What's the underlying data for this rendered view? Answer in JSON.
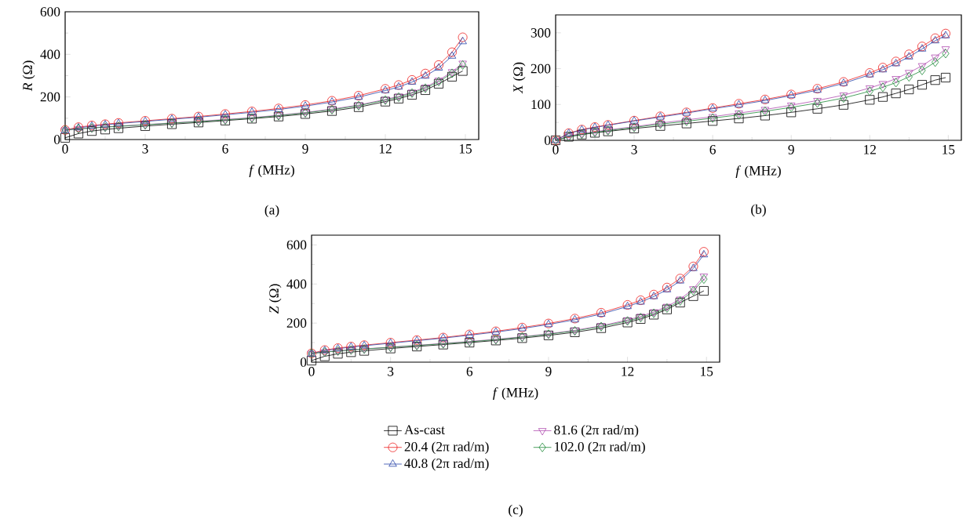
{
  "chart_data": [
    {
      "type": "line",
      "xlabel": "*f* (MHz)",
      "ylabel": "*R* (Ω)",
      "annotations": [
        "(a)"
      ],
      "xlim": [
        0,
        15.5
      ],
      "ylim": [
        0,
        600
      ],
      "xticks": [
        0,
        3,
        6,
        9,
        12,
        15
      ],
      "yticks": [
        0,
        200,
        400,
        600
      ],
      "grid": false,
      "legend": false,
      "x": [
        0,
        0.5,
        1,
        1.5,
        2,
        3,
        4,
        5,
        6,
        7,
        8,
        9,
        10,
        11,
        12,
        12.5,
        13,
        13.5,
        14,
        14.5,
        14.9
      ],
      "series": [
        {
          "color": "#000000",
          "marker": "square",
          "values": [
            8,
            28,
            40,
            47,
            53,
            63,
            72,
            80,
            89,
            98,
            108,
            120,
            134,
            152,
            178,
            192,
            210,
            232,
            262,
            295,
            322
          ]
        },
        {
          "color": "#ee2222",
          "marker": "circle",
          "values": [
            45,
            58,
            66,
            72,
            78,
            88,
            98,
            108,
            120,
            132,
            146,
            162,
            182,
            206,
            238,
            256,
            280,
            310,
            350,
            410,
            480
          ]
        },
        {
          "color": "#2a45a8",
          "marker": "triangle",
          "values": [
            42,
            55,
            63,
            69,
            75,
            85,
            95,
            105,
            116,
            128,
            141,
            157,
            176,
            199,
            230,
            247,
            270,
            298,
            336,
            392,
            460
          ]
        },
        {
          "color": "#b04cb0",
          "marker": "triangle-down",
          "values": [
            45,
            50,
            55,
            59,
            63,
            70,
            78,
            86,
            94,
            103,
            114,
            127,
            143,
            162,
            188,
            203,
            222,
            246,
            278,
            318,
            358
          ]
        },
        {
          "color": "#1f8a3a",
          "marker": "diamond",
          "values": [
            45,
            50,
            54,
            58,
            62,
            69,
            77,
            84,
            92,
            101,
            112,
            125,
            140,
            159,
            185,
            199,
            218,
            241,
            272,
            311,
            350
          ]
        }
      ]
    },
    {
      "type": "line",
      "xlabel": "*f* (MHz)",
      "ylabel": "*X* (Ω)",
      "annotations": [
        "(b)"
      ],
      "xlim": [
        0,
        15.5
      ],
      "ylim": [
        0,
        350
      ],
      "xticks": [
        0,
        3,
        6,
        9,
        12,
        15
      ],
      "yticks": [
        0,
        100,
        200,
        300
      ],
      "grid": false,
      "legend": false,
      "x": [
        0,
        0.5,
        1,
        1.5,
        2,
        3,
        4,
        5,
        6,
        7,
        8,
        9,
        10,
        11,
        12,
        12.5,
        13,
        13.5,
        14,
        14.5,
        14.9
      ],
      "series": [
        {
          "color": "#000000",
          "marker": "square",
          "values": [
            0,
            10,
            16,
            21,
            25,
            33,
            40,
            47,
            54,
            61,
            69,
            78,
            88,
            99,
            113,
            121,
            131,
            142,
            155,
            168,
            175
          ]
        },
        {
          "color": "#ee2222",
          "marker": "circle",
          "values": [
            0,
            20,
            30,
            37,
            43,
            55,
            67,
            78,
            90,
            102,
            114,
            128,
            144,
            163,
            188,
            203,
            220,
            240,
            262,
            285,
            298
          ]
        },
        {
          "color": "#2a45a8",
          "marker": "triangle",
          "values": [
            0,
            19,
            29,
            36,
            42,
            54,
            65,
            76,
            88,
            99,
            111,
            125,
            140,
            159,
            183,
            197,
            214,
            233,
            255,
            278,
            292
          ]
        },
        {
          "color": "#b04cb0",
          "marker": "triangle-down",
          "values": [
            0,
            12,
            19,
            24,
            29,
            38,
            48,
            57,
            66,
            76,
            86,
            98,
            111,
            126,
            146,
            158,
            172,
            189,
            208,
            232,
            255
          ]
        },
        {
          "color": "#1f8a3a",
          "marker": "diamond",
          "values": [
            0,
            10,
            17,
            22,
            27,
            36,
            45,
            53,
            62,
            71,
            81,
            92,
            104,
            118,
            137,
            148,
            161,
            177,
            195,
            218,
            242
          ]
        }
      ]
    },
    {
      "type": "line",
      "xlabel": "*f* (MHz)",
      "ylabel": "*Z* (Ω)",
      "annotations": [
        "(c)"
      ],
      "xlim": [
        0,
        15.5
      ],
      "ylim": [
        0,
        650
      ],
      "xticks": [
        0,
        3,
        6,
        9,
        12,
        15
      ],
      "yticks": [
        0,
        200,
        400,
        600
      ],
      "grid": false,
      "legend": "bottom",
      "x": [
        0,
        0.5,
        1,
        1.5,
        2,
        3,
        4,
        5,
        6,
        7,
        8,
        9,
        10,
        11,
        12,
        12.5,
        13,
        13.5,
        14,
        14.5,
        14.9
      ],
      "series": [
        {
          "name": "As-cast",
          "color": "#000000",
          "marker": "square",
          "values": [
            8,
            30,
            43,
            51,
            58,
            70,
            80,
            90,
            100,
            111,
            123,
            137,
            153,
            174,
            203,
            221,
            243,
            270,
            305,
            338,
            365
          ]
        },
        {
          "name": "20.4 (2π rad/m)",
          "color": "#ee2222",
          "marker": "circle",
          "values": [
            45,
            62,
            72,
            80,
            87,
            100,
            113,
            126,
            142,
            158,
            177,
            198,
            223,
            253,
            293,
            317,
            346,
            382,
            428,
            490,
            565
          ]
        },
        {
          "name": "40.8 (2π rad/m)",
          "color": "#2a45a8",
          "marker": "triangle",
          "values": [
            42,
            59,
            69,
            77,
            84,
            97,
            110,
            123,
            138,
            154,
            172,
            193,
            217,
            246,
            285,
            308,
            336,
            371,
            416,
            480,
            550
          ]
        },
        {
          "name": "81.6 (2π rad/m)",
          "color": "#b04cb0",
          "marker": "triangle-down",
          "values": [
            45,
            52,
            58,
            63,
            68,
            77,
            86,
            96,
            106,
            117,
            130,
            145,
            163,
            186,
            216,
            234,
            257,
            285,
            322,
            375,
            440
          ]
        },
        {
          "name": "102.0 (2π rad/m)",
          "color": "#1f8a3a",
          "marker": "diamond",
          "values": [
            45,
            51,
            57,
            62,
            67,
            76,
            85,
            94,
            104,
            115,
            128,
            143,
            160,
            182,
            211,
            228,
            250,
            277,
            313,
            365,
            425
          ]
        }
      ]
    }
  ]
}
